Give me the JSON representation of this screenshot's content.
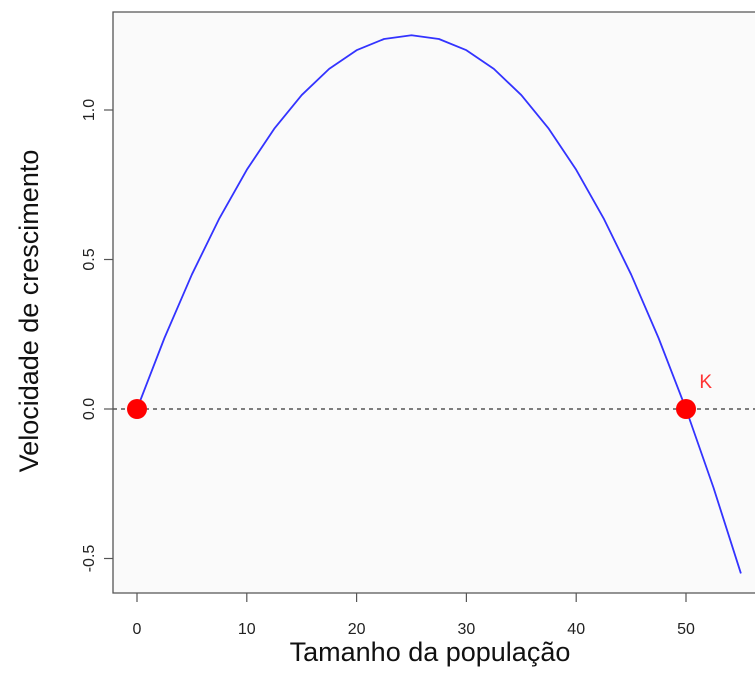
{
  "chart_data": {
    "type": "line",
    "title": "",
    "xlabel": "Tamanho da população",
    "ylabel": "Velocidade de crescimento",
    "xlim": [
      -1,
      56
    ],
    "ylim": [
      -0.57,
      1.3
    ],
    "x_ticks": [
      0,
      10,
      20,
      30,
      40,
      50
    ],
    "y_ticks": [
      -0.5,
      0.0,
      0.5,
      1.0
    ],
    "x_tick_labels": [
      "0",
      "10",
      "20",
      "30",
      "40",
      "50"
    ],
    "y_tick_labels": [
      "-0.5",
      "0.0",
      "0.5",
      "1.0"
    ],
    "grid": false,
    "series": [
      {
        "line_color": "#3333ff",
        "x": [
          0,
          2.5,
          5,
          7.5,
          10,
          12.5,
          15,
          17.5,
          20,
          22.5,
          25,
          27.5,
          30,
          32.5,
          35,
          37.5,
          40,
          42.5,
          45,
          47.5,
          50,
          52.5,
          55
        ],
        "y": [
          0,
          0.2375,
          0.45,
          0.6375,
          0.8,
          0.9375,
          1.05,
          1.1375,
          1.2,
          1.2375,
          1.25,
          1.2375,
          1.2,
          1.1375,
          1.05,
          0.9375,
          0.8,
          0.6375,
          0.45,
          0.2375,
          0,
          -0.2625,
          -0.55
        ]
      }
    ],
    "reference_line": {
      "y": 0,
      "style": "dashed",
      "color": "#555555"
    },
    "points": [
      {
        "x": 0,
        "y": 0,
        "color": "#ff0000"
      },
      {
        "x": 50,
        "y": 0,
        "color": "#ff0000"
      }
    ],
    "annotations": [
      {
        "text": "K",
        "x": 51.8,
        "y": 0.07,
        "color": "#ff3333"
      }
    ]
  }
}
